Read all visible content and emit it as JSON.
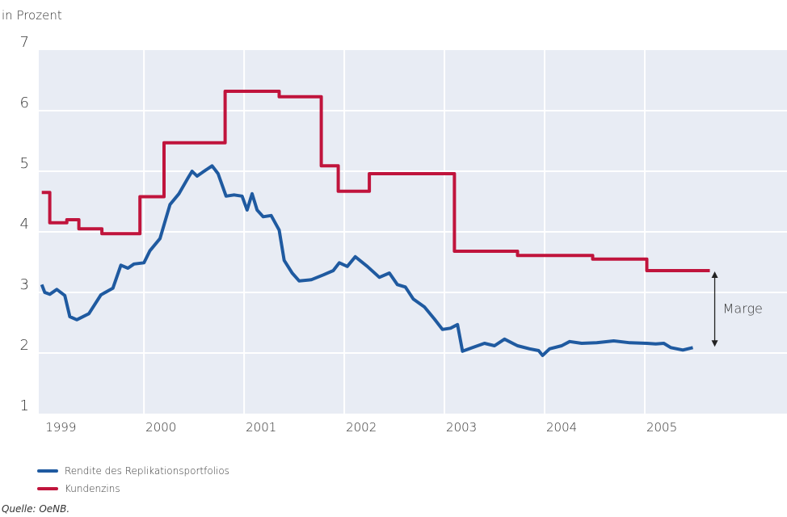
{
  "chart_data": {
    "type": "line",
    "ylabel": "in Prozent",
    "source": "Quelle: OeNB.",
    "annotation": "Marge",
    "xlim": [
      1998.95,
      2006.42
    ],
    "ylim": [
      1,
      7
    ],
    "yticks": [
      1,
      2,
      3,
      4,
      5,
      6,
      7
    ],
    "xticks": [
      1999,
      2000,
      2001,
      2002,
      2003,
      2004,
      2005
    ],
    "grid": true,
    "series": [
      {
        "name": "Rendite des Replikationsportfolios",
        "color": "#1f5aa0",
        "x": [
          1998.98,
          1999.01,
          1999.06,
          1999.13,
          1999.21,
          1999.26,
          1999.33,
          1999.45,
          1999.57,
          1999.69,
          1999.77,
          1999.84,
          1999.9,
          2000.0,
          2000.06,
          2000.16,
          2000.26,
          2000.35,
          2000.44,
          2000.48,
          2000.53,
          2000.6,
          2000.68,
          2000.74,
          2000.82,
          2000.9,
          2000.98,
          2001.03,
          2001.08,
          2001.13,
          2001.19,
          2001.27,
          2001.35,
          2001.4,
          2001.48,
          2001.55,
          2001.67,
          2001.79,
          2001.89,
          2001.95,
          2002.03,
          2002.11,
          2002.23,
          2002.35,
          2002.45,
          2002.53,
          2002.61,
          2002.69,
          2002.8,
          2002.9,
          2002.98,
          2003.06,
          2003.13,
          2003.18,
          2003.28,
          2003.4,
          2003.5,
          2003.6,
          2003.73,
          2003.85,
          2003.94,
          2003.98,
          2004.05,
          2004.17,
          2004.25,
          2004.37,
          2004.52,
          2004.69,
          2004.85,
          2005.02,
          2005.11,
          2005.19,
          2005.26,
          2005.38,
          2005.48
        ],
        "values": [
          3.13,
          3.0,
          2.97,
          3.05,
          2.95,
          2.6,
          2.55,
          2.65,
          2.96,
          3.07,
          3.45,
          3.4,
          3.47,
          3.49,
          3.69,
          3.89,
          4.45,
          4.63,
          4.89,
          5.0,
          4.92,
          5.0,
          5.09,
          4.96,
          4.59,
          4.61,
          4.59,
          4.36,
          4.63,
          4.36,
          4.25,
          4.27,
          4.03,
          3.53,
          3.32,
          3.19,
          3.21,
          3.29,
          3.36,
          3.49,
          3.43,
          3.59,
          3.43,
          3.25,
          3.32,
          3.13,
          3.09,
          2.89,
          2.76,
          2.56,
          2.39,
          2.41,
          2.47,
          2.03,
          2.09,
          2.16,
          2.12,
          2.23,
          2.12,
          2.07,
          2.04,
          1.96,
          2.07,
          2.12,
          2.19,
          2.16,
          2.17,
          2.2,
          2.17,
          2.16,
          2.15,
          2.16,
          2.09,
          2.05,
          2.09
        ]
      },
      {
        "name": "Kundenzins",
        "color": "#c0143c",
        "x": [
          1998.98,
          1999.06,
          1999.06,
          1999.23,
          1999.23,
          1999.35,
          1999.35,
          1999.58,
          1999.58,
          1999.96,
          1999.96,
          2000.2,
          2000.2,
          2000.81,
          2000.81,
          2001.35,
          2001.35,
          2001.77,
          2001.77,
          2001.94,
          2001.94,
          2002.25,
          2002.25,
          2003.1,
          2003.1,
          2003.73,
          2003.73,
          2004.48,
          2004.48,
          2005.02,
          2005.02,
          2005.65
        ],
        "values": [
          4.65,
          4.65,
          4.15,
          4.15,
          4.2,
          4.2,
          4.05,
          4.05,
          3.97,
          3.97,
          4.58,
          4.58,
          5.47,
          5.47,
          6.32,
          6.32,
          6.23,
          6.23,
          5.09,
          5.09,
          4.67,
          4.67,
          4.96,
          4.96,
          3.68,
          3.68,
          3.61,
          3.61,
          3.55,
          3.55,
          3.36,
          3.36
        ]
      }
    ]
  }
}
